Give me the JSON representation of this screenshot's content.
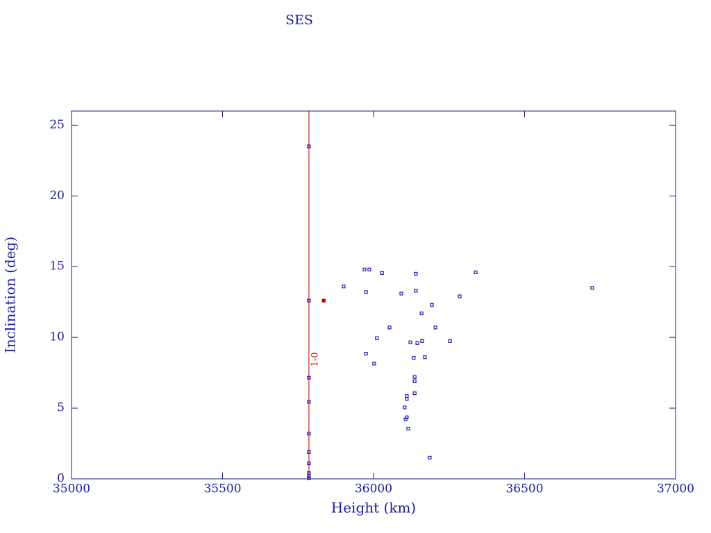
{
  "chart_data": {
    "type": "scatter",
    "title": "SES",
    "x_label": "Height (km)",
    "y_label": "Inclination (deg)",
    "xlim": [
      35000,
      37000
    ],
    "ylim": [
      0,
      26
    ],
    "xticks": [
      35000,
      35500,
      36000,
      36500,
      37000
    ],
    "yticks": [
      0,
      5,
      10,
      15,
      20,
      25
    ],
    "axis_color": "#1a1a90",
    "vlines": [
      {
        "x": 35786,
        "label": "1-0",
        "color": "#c00000"
      }
    ],
    "series": [
      {
        "color": "#1a1ab0",
        "x": [
          35786,
          35786,
          35786,
          35786,
          35786,
          35786,
          35786,
          35786,
          35786,
          35786,
          35970,
          35986,
          36028,
          36140,
          36338,
          36724,
          35901,
          35975,
          36140,
          36092,
          36285,
          36193,
          36159,
          36053,
          36205,
          36011,
          36122,
          36145,
          36161,
          36253,
          35975,
          36170,
          36133,
          36002,
          36136,
          36136,
          36136,
          36110,
          36110,
          36103,
          36110,
          36106,
          36115,
          36186
        ],
        "y": [
          23.5,
          12.6,
          7.15,
          5.45,
          3.2,
          1.9,
          1.1,
          0.4,
          0.2,
          0.05,
          14.8,
          14.8,
          14.55,
          14.5,
          14.6,
          13.5,
          13.6,
          13.2,
          13.3,
          13.1,
          12.9,
          12.3,
          11.7,
          10.7,
          10.7,
          9.95,
          9.65,
          9.6,
          9.75,
          9.75,
          8.85,
          8.6,
          8.55,
          8.15,
          7.2,
          6.9,
          6.05,
          5.85,
          5.65,
          5.05,
          4.35,
          4.2,
          3.55,
          1.5
        ]
      },
      {
        "color": "#c00000",
        "x": [
          35835
        ],
        "y": [
          12.6
        ]
      }
    ]
  }
}
